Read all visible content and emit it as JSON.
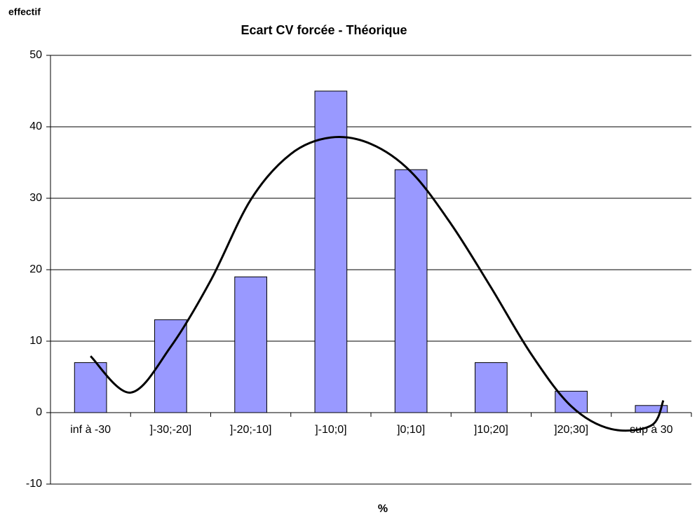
{
  "chart_data": {
    "type": "bar",
    "title": "Ecart CV forcée - Théorique",
    "y_label": "effectif",
    "x_label": "%",
    "categories": [
      "inf à -30",
      "]-30;-20]",
      "]-20;-10]",
      "]-10;0]",
      "]0;10]",
      "]10;20]",
      "]20;30]",
      "sup à 30"
    ],
    "values": [
      7,
      13,
      19,
      45,
      34,
      7,
      3,
      1
    ],
    "color": "#9999ff",
    "ylim": [
      -10,
      50
    ],
    "yticks": [
      -10,
      0,
      10,
      20,
      30,
      40,
      50
    ],
    "grid": true,
    "trend": {
      "color": "#000000",
      "x": [
        1,
        1.5,
        2,
        2.5,
        3,
        3.5,
        4,
        4.5,
        5,
        5.5,
        6,
        6.5,
        7,
        7.5,
        8,
        8.15
      ],
      "values": [
        7.9,
        2.8,
        9.2,
        18.5,
        29.8,
        36.2,
        38.5,
        37.6,
        33.7,
        26.4,
        17.5,
        8.2,
        0.9,
        -2.3,
        -1.8,
        1.7
      ]
    }
  }
}
